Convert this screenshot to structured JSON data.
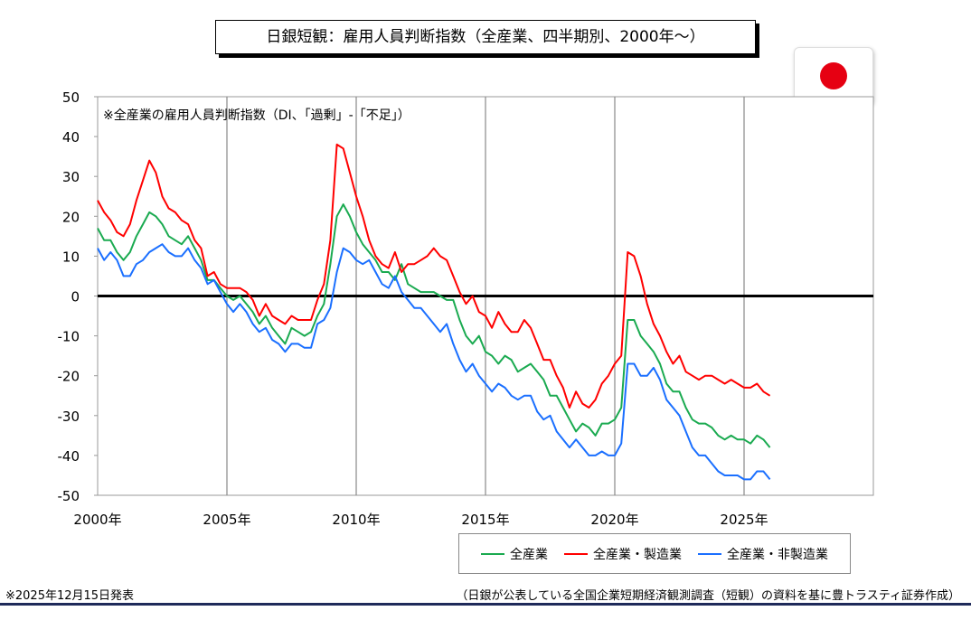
{
  "title": "日銀短観：雇用人員判断指数（全産業、四半期別、2000年～）",
  "footer_left": "※2025年12月15日発表",
  "footer_right": "（日銀が公表している全国企業短期経済観測調査（短観）の資料を基に豊トラスティ証券作成）",
  "chart_data": {
    "type": "line",
    "title": "日銀短観：雇用人員判断指数（全産業、四半期別、2000年～）",
    "annotation": "※全産業の雇用人員判断指数（DI、「過剰」-「不足」）",
    "x_start": 2000,
    "x_step": 0.25,
    "xlim": [
      2000,
      2030
    ],
    "ylim": [
      -50,
      50
    ],
    "xticks": [
      2000,
      2005,
      2010,
      2015,
      2020,
      2025
    ],
    "xtick_labels": [
      "2000年",
      "2005年",
      "2010年",
      "2015年",
      "2020年",
      "2025年"
    ],
    "yticks": [
      50,
      40,
      30,
      20,
      10,
      0,
      -10,
      -20,
      -30,
      -40,
      -50
    ],
    "ytick_labels": [
      "50",
      "40",
      "30",
      "20",
      "10",
      "0",
      "-10",
      "-20",
      "-30",
      "-40",
      "-50"
    ],
    "legend_position": "bottom-right",
    "series": [
      {
        "name": "全産業",
        "color": "#1aaa50",
        "values": [
          17,
          14,
          14,
          11,
          9,
          11,
          15,
          18,
          21,
          20,
          18,
          15,
          14,
          13,
          15,
          12,
          9,
          4,
          4,
          2,
          0,
          -1,
          0,
          -2,
          -4,
          -7,
          -5,
          -8,
          -10,
          -12,
          -8,
          -9,
          -10,
          -9,
          -5,
          -2,
          8,
          20,
          23,
          20,
          16,
          13,
          11,
          9,
          6,
          6,
          4,
          8,
          3,
          2,
          1,
          1,
          1,
          0,
          -1,
          -1,
          -6,
          -10,
          -12,
          -10,
          -14,
          -15,
          -17,
          -15,
          -16,
          -19,
          -18,
          -17,
          -19,
          -21,
          -25,
          -25,
          -28,
          -31,
          -34,
          -32,
          -33,
          -35,
          -32,
          -32,
          -31,
          -28,
          -6,
          -6,
          -10,
          -12,
          -14,
          -17,
          -22,
          -24,
          -24,
          -28,
          -31,
          -32,
          -32,
          -33,
          -35,
          -36,
          -35,
          -36,
          -36,
          -37,
          -35,
          -36,
          -38
        ]
      },
      {
        "name": "全産業・製造業",
        "color": "#ff0000",
        "values": [
          24,
          21,
          19,
          16,
          15,
          18,
          24,
          29,
          34,
          31,
          25,
          22,
          21,
          19,
          18,
          14,
          12,
          5,
          6,
          3,
          2,
          2,
          2,
          1,
          -1,
          -5,
          -2,
          -5,
          -6,
          -7,
          -5,
          -6,
          -6,
          -6,
          -1,
          3,
          14,
          38,
          37,
          31,
          25,
          20,
          14,
          10,
          8,
          7,
          11,
          6,
          8,
          8,
          9,
          10,
          12,
          10,
          9,
          5,
          1,
          -2,
          0,
          -4,
          -5,
          -8,
          -4,
          -7,
          -9,
          -9,
          -6,
          -8,
          -12,
          -16,
          -16,
          -20,
          -23,
          -28,
          -24,
          -27,
          -28,
          -26,
          -22,
          -20,
          -17,
          -15,
          11,
          10,
          5,
          -2,
          -7,
          -10,
          -14,
          -17,
          -15,
          -19,
          -20,
          -21,
          -20,
          -20,
          -21,
          -22,
          -21,
          -22,
          -23,
          -23,
          -22,
          -24,
          -25
        ]
      },
      {
        "name": "全産業・非製造業",
        "color": "#1a6fff",
        "values": [
          12,
          9,
          11,
          9,
          5,
          5,
          8,
          9,
          11,
          12,
          13,
          11,
          10,
          10,
          12,
          9,
          7,
          3,
          4,
          1,
          -2,
          -4,
          -2,
          -4,
          -7,
          -9,
          -8,
          -11,
          -12,
          -14,
          -12,
          -12,
          -13,
          -13,
          -7,
          -6,
          -3,
          6,
          12,
          11,
          9,
          8,
          9,
          6,
          3,
          2,
          5,
          1,
          -1,
          -3,
          -3,
          -5,
          -7,
          -9,
          -7,
          -12,
          -16,
          -19,
          -17,
          -20,
          -22,
          -24,
          -22,
          -23,
          -25,
          -26,
          -25,
          -25,
          -29,
          -31,
          -30,
          -34,
          -36,
          -38,
          -36,
          -38,
          -40,
          -40,
          -39,
          -40,
          -40,
          -37,
          -17,
          -17,
          -20,
          -20,
          -18,
          -21,
          -26,
          -28,
          -30,
          -34,
          -38,
          -40,
          -40,
          -42,
          -44,
          -45,
          -45,
          -45,
          -46,
          -46,
          -44,
          -44,
          -46
        ]
      }
    ]
  }
}
